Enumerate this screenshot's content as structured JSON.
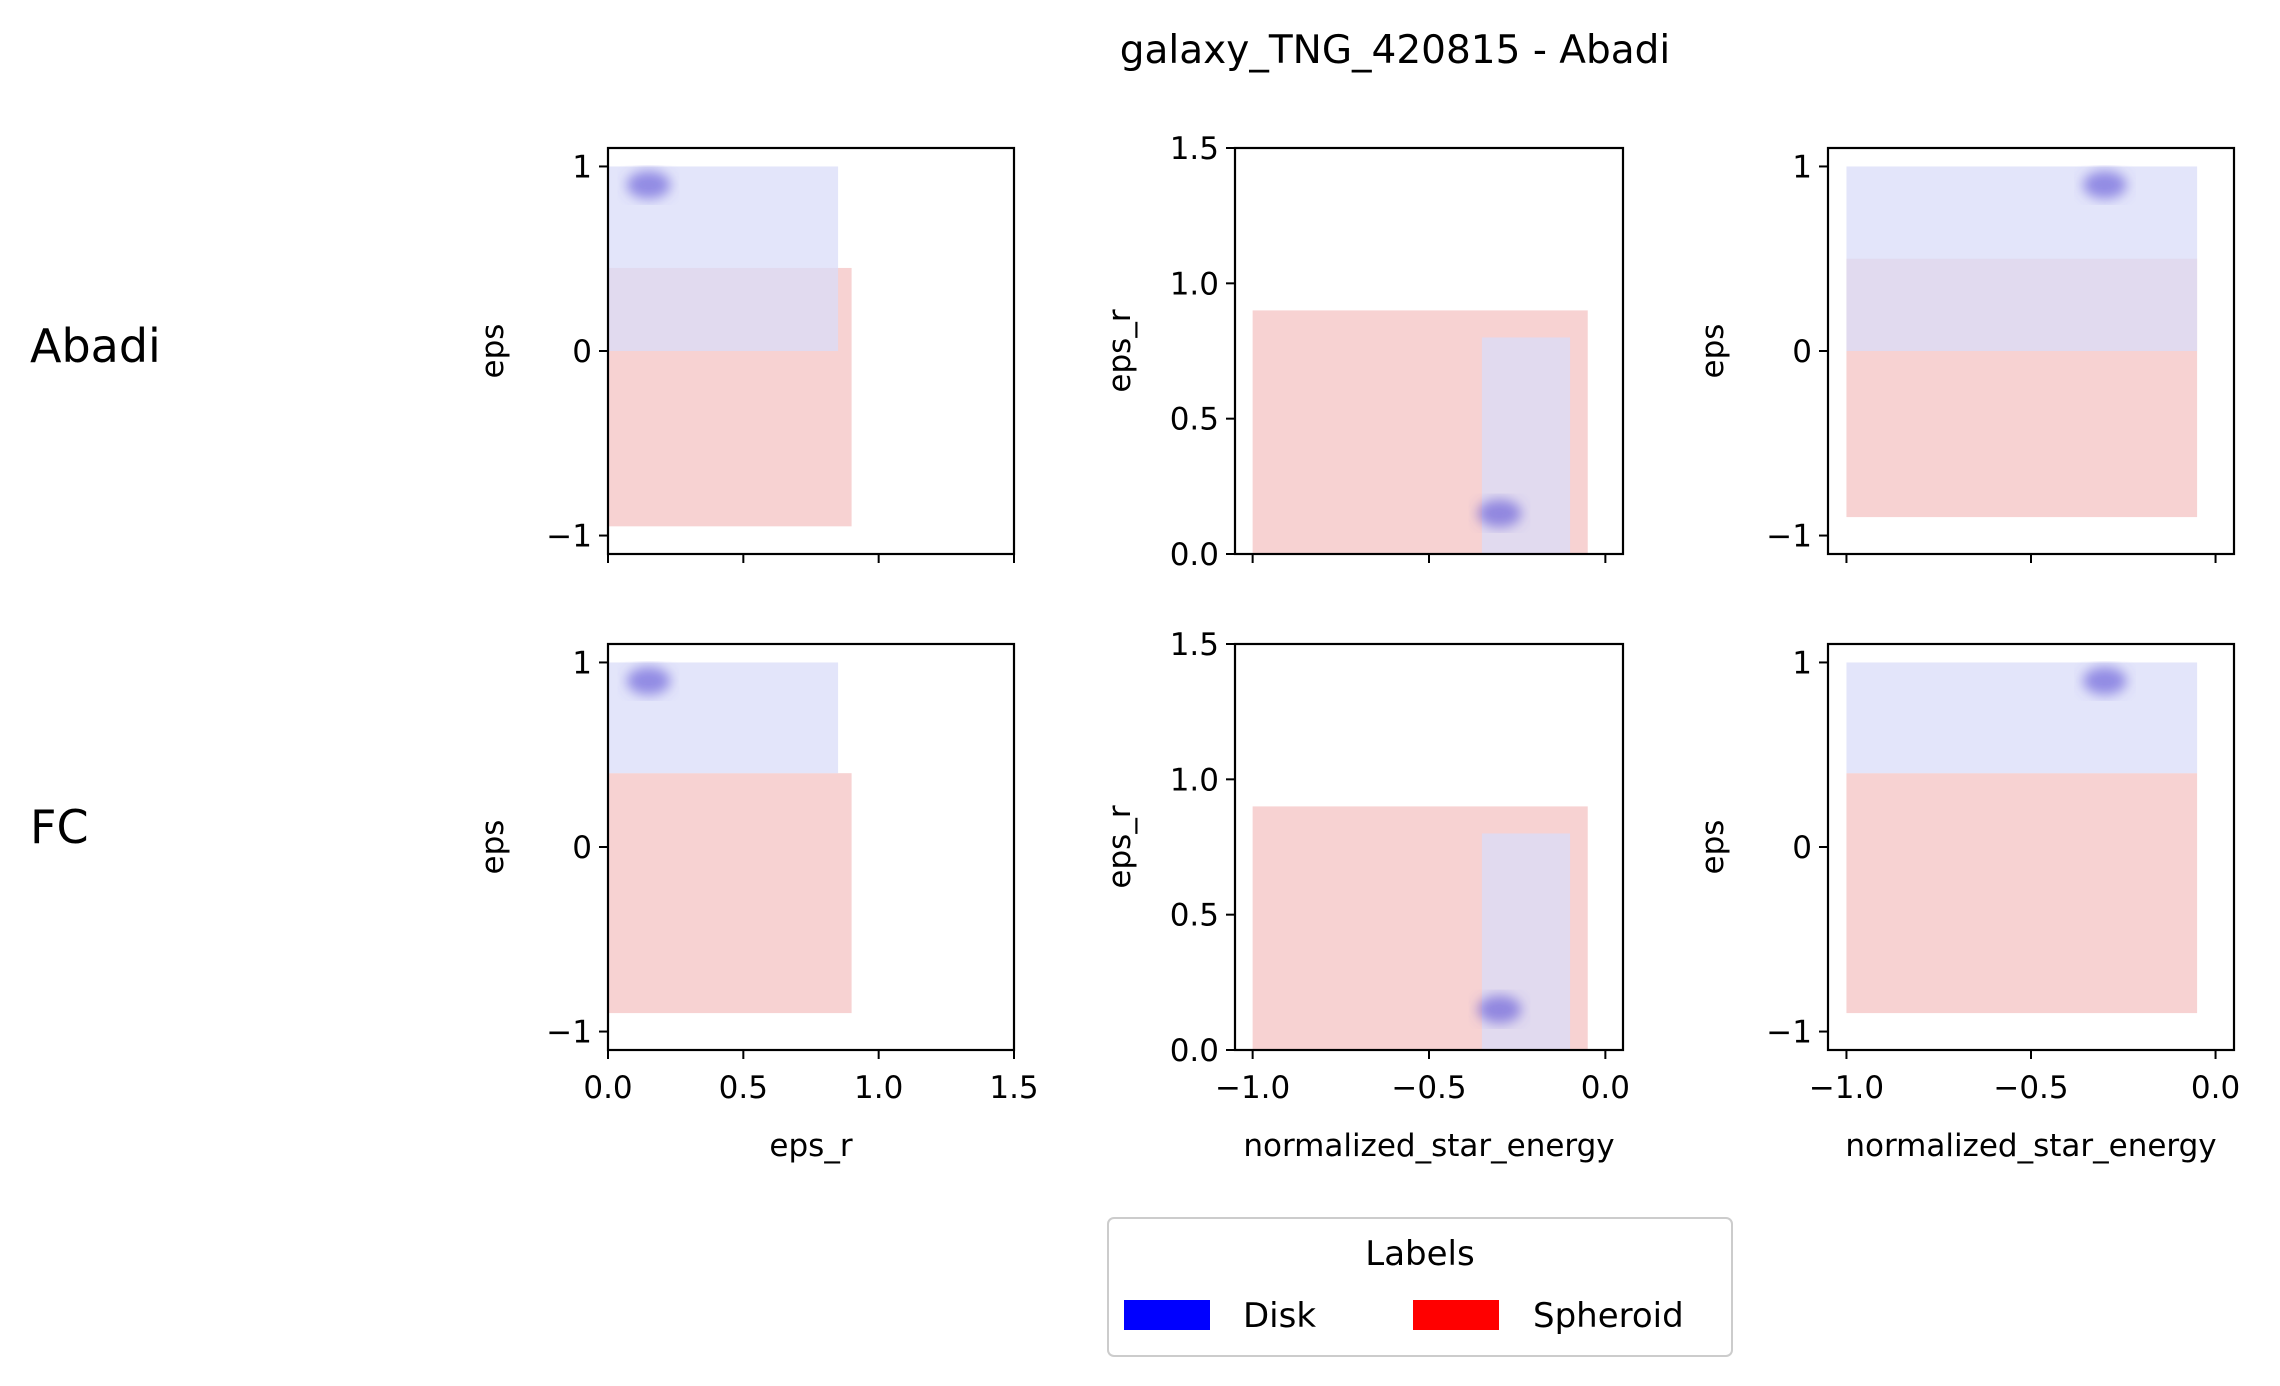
{
  "figure": {
    "title": "galaxy_TNG_420815 - Abadi",
    "row_labels": [
      "Abadi",
      "FC"
    ],
    "legend": {
      "title": "Labels",
      "entries": [
        {
          "label": "Disk",
          "color": "#0000ff"
        },
        {
          "label": "Spheroid",
          "color": "#ff0000"
        }
      ]
    }
  },
  "chart_data": [
    {
      "type": "heatmap",
      "row": "Abadi",
      "panel": "eps_r vs eps",
      "xlabel": "",
      "ylabel": "eps",
      "xlim": [
        0.0,
        1.5
      ],
      "ylim": [
        -1.1,
        1.1
      ],
      "x_ticks": [],
      "y_ticks": [
        -1,
        0,
        1
      ],
      "grid": false,
      "regions": [
        {
          "series": "Spheroid",
          "x_range": [
            0.0,
            0.9
          ],
          "y_range": [
            -0.95,
            0.45
          ]
        },
        {
          "series": "Disk",
          "x_range": [
            0.0,
            0.85
          ],
          "y_range": [
            0.0,
            1.0
          ]
        }
      ],
      "density_peak": {
        "series": "Disk",
        "x": 0.15,
        "y": 0.9
      }
    },
    {
      "type": "heatmap",
      "row": "Abadi",
      "panel": "normalized_star_energy vs eps_r",
      "xlabel": "",
      "ylabel": "eps_r",
      "xlim": [
        -1.05,
        0.05
      ],
      "ylim": [
        0.0,
        1.5
      ],
      "x_ticks": [],
      "y_ticks": [
        0.0,
        0.5,
        1.0,
        1.5
      ],
      "grid": false,
      "regions": [
        {
          "series": "Spheroid",
          "x_range": [
            -1.0,
            -0.05
          ],
          "y_range": [
            0.0,
            0.9
          ]
        },
        {
          "series": "Disk",
          "x_range": [
            -0.35,
            -0.1
          ],
          "y_range": [
            0.0,
            0.8
          ]
        }
      ],
      "density_peak": {
        "series": "Disk",
        "x": -0.3,
        "y": 0.15
      }
    },
    {
      "type": "heatmap",
      "row": "Abadi",
      "panel": "normalized_star_energy vs eps",
      "xlabel": "",
      "ylabel": "eps",
      "xlim": [
        -1.05,
        0.05
      ],
      "ylim": [
        -1.1,
        1.1
      ],
      "x_ticks": [],
      "y_ticks": [
        -1,
        0,
        1
      ],
      "grid": false,
      "regions": [
        {
          "series": "Spheroid",
          "x_range": [
            -1.0,
            -0.05
          ],
          "y_range": [
            -0.9,
            0.5
          ]
        },
        {
          "series": "Disk",
          "x_range": [
            -1.0,
            -0.05
          ],
          "y_range": [
            0.0,
            1.0
          ]
        }
      ],
      "density_peak": {
        "series": "Disk",
        "x": -0.3,
        "y": 0.9
      }
    },
    {
      "type": "heatmap",
      "row": "FC",
      "panel": "eps_r vs eps",
      "xlabel": "eps_r",
      "ylabel": "eps",
      "xlim": [
        0.0,
        1.5
      ],
      "ylim": [
        -1.1,
        1.1
      ],
      "x_ticks": [
        0.0,
        0.5,
        1.0,
        1.5
      ],
      "y_ticks": [
        -1,
        0,
        1
      ],
      "grid": false,
      "regions": [
        {
          "series": "Spheroid",
          "x_range": [
            0.0,
            0.9
          ],
          "y_range": [
            -0.9,
            0.4
          ]
        },
        {
          "series": "Disk",
          "x_range": [
            0.0,
            0.85
          ],
          "y_range": [
            0.4,
            1.0
          ]
        }
      ],
      "density_peak": {
        "series": "Disk",
        "x": 0.15,
        "y": 0.9
      }
    },
    {
      "type": "heatmap",
      "row": "FC",
      "panel": "normalized_star_energy vs eps_r",
      "xlabel": "normalized_star_energy",
      "ylabel": "eps_r",
      "xlim": [
        -1.05,
        0.05
      ],
      "ylim": [
        0.0,
        1.5
      ],
      "x_ticks": [
        -1.0,
        -0.5,
        0.0
      ],
      "y_ticks": [
        0.0,
        0.5,
        1.0,
        1.5
      ],
      "grid": false,
      "regions": [
        {
          "series": "Spheroid",
          "x_range": [
            -1.0,
            -0.05
          ],
          "y_range": [
            0.0,
            0.9
          ]
        },
        {
          "series": "Disk",
          "x_range": [
            -0.35,
            -0.1
          ],
          "y_range": [
            0.0,
            0.8
          ]
        }
      ],
      "density_peak": {
        "series": "Disk",
        "x": -0.3,
        "y": 0.15
      }
    },
    {
      "type": "heatmap",
      "row": "FC",
      "panel": "normalized_star_energy vs eps",
      "xlabel": "normalized_star_energy",
      "ylabel": "eps",
      "xlim": [
        -1.05,
        0.05
      ],
      "ylim": [
        -1.1,
        1.1
      ],
      "x_ticks": [
        -1.0,
        -0.5,
        0.0
      ],
      "y_ticks": [
        -1,
        0,
        1
      ],
      "grid": false,
      "regions": [
        {
          "series": "Spheroid",
          "x_range": [
            -1.0,
            -0.05
          ],
          "y_range": [
            -0.9,
            0.4
          ]
        },
        {
          "series": "Disk",
          "x_range": [
            -1.0,
            -0.05
          ],
          "y_range": [
            0.4,
            1.0
          ]
        }
      ],
      "density_peak": {
        "series": "Disk",
        "x": -0.3,
        "y": 0.9
      }
    }
  ]
}
